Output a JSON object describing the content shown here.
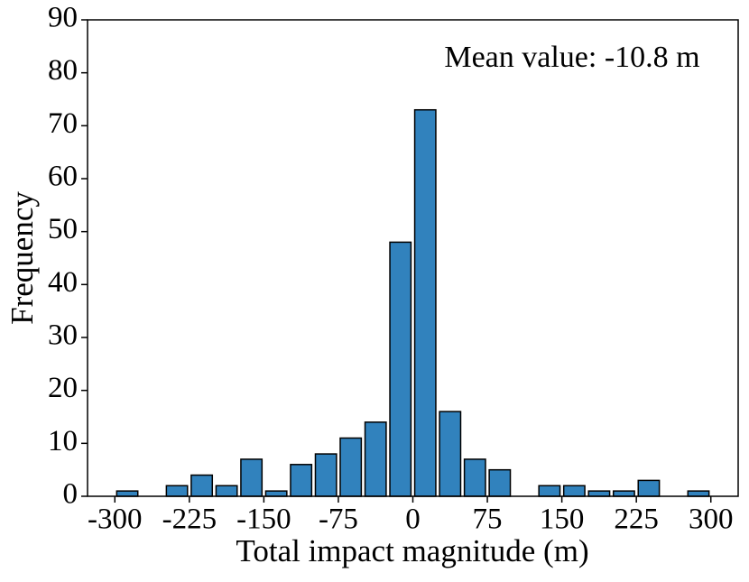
{
  "chart_data": {
    "type": "histogram",
    "xlabel": "Total impact magnitude (m)",
    "ylabel": "Frequency",
    "annotation": "Mean value: -10.8 m",
    "color": "#3182bd",
    "edgecolor": "#000000",
    "bins": [
      -300,
      -275,
      -250,
      -225,
      -200,
      -175,
      -150,
      -125,
      -100,
      -75,
      -50,
      -25,
      0,
      25,
      50,
      75,
      100,
      125,
      150,
      175,
      200,
      225,
      250,
      275,
      300
    ],
    "values": [
      1,
      0,
      2,
      4,
      2,
      7,
      1,
      6,
      8,
      11,
      14,
      48,
      73,
      16,
      7,
      5,
      0,
      2,
      2,
      1,
      1,
      3,
      0,
      1
    ],
    "xlim": [
      -327.5,
      327.5
    ],
    "ylim": [
      0,
      90
    ],
    "xticks": [
      -300,
      -225,
      -150,
      -75,
      0,
      75,
      150,
      225,
      300
    ],
    "yticks": [
      0,
      10,
      20,
      30,
      40,
      50,
      60,
      70,
      80,
      90
    ]
  }
}
